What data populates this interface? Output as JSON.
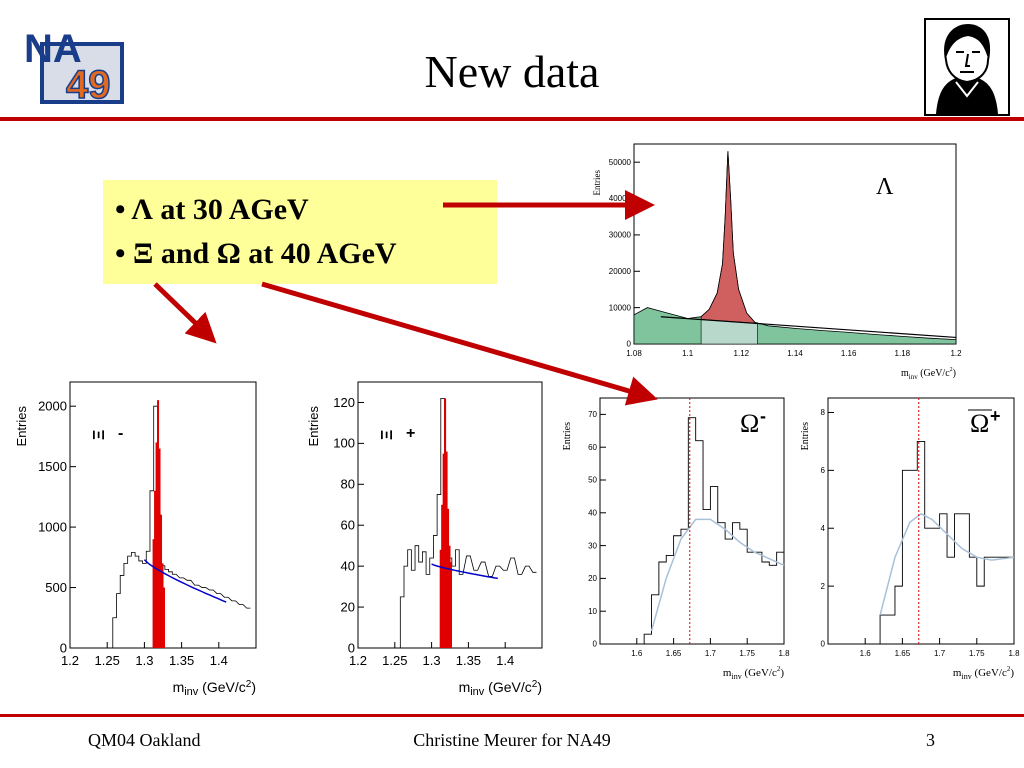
{
  "header": {
    "title": "New data",
    "logo": {
      "line1": "NA",
      "line2": "49",
      "icon": "na49-logo-icon"
    },
    "portrait_icon": "goethe-portrait-icon"
  },
  "bullets": [
    {
      "symbol": "Λ",
      "text": "at 30 AGeV"
    },
    {
      "symbol": "Ξ",
      "mid": "and",
      "symbol2": "Ω",
      "text": "at 40 AGeV"
    }
  ],
  "footer": {
    "left": "QM04 Oakland",
    "center": "Christine Meurer for NA49",
    "page": "3"
  },
  "colors": {
    "rule": "#c00000",
    "box": "#ffff99",
    "signal": "#e00000",
    "lambda_signal": "#d06060",
    "lambda_bg": "#7fc49c",
    "fit_blue": "#0000cc",
    "fit_lightblue": "#a8c0d8"
  },
  "chart_data": [
    {
      "id": "lambda",
      "type": "area",
      "label": "Λ",
      "ylabel": "Entries",
      "xlabel": {
        "main": "m",
        "sub": "inv",
        "unit": " (GeV/c",
        "sup": "2",
        "close": ")"
      },
      "xlim": [
        1.08,
        1.2
      ],
      "ylim": [
        0,
        55000
      ],
      "xticks": [
        "1.08",
        "1.1",
        "1.12",
        "1.14",
        "1.16",
        "1.18",
        "1.2"
      ],
      "yticks": [
        "0",
        "10000",
        "20000",
        "30000",
        "40000",
        "50000"
      ],
      "x": [
        1.08,
        1.085,
        1.09,
        1.095,
        1.1,
        1.105,
        1.108,
        1.111,
        1.113,
        1.114,
        1.115,
        1.116,
        1.117,
        1.119,
        1.122,
        1.125,
        1.13,
        1.14,
        1.15,
        1.16,
        1.17,
        1.18,
        1.19,
        1.2
      ],
      "y": [
        8000,
        10000,
        9000,
        8000,
        7000,
        7500,
        9500,
        14000,
        22000,
        35000,
        53000,
        40000,
        25000,
        15000,
        8500,
        6000,
        5000,
        4300,
        3700,
        3200,
        2600,
        2100,
        1600,
        1200
      ],
      "background_fit": {
        "x": [
          1.09,
          1.2
        ],
        "y": [
          7500,
          1800
        ]
      }
    },
    {
      "id": "xi-minus",
      "type": "line",
      "label": "Ξ",
      "label_sup": "-",
      "ylabel": "Entries",
      "xlabel": {
        "main": "m",
        "sub": "inv",
        "unit": " (GeV/c",
        "sup": "2",
        "close": ")"
      },
      "xlim": [
        1.2,
        1.45
      ],
      "ylim": [
        0,
        2200
      ],
      "xticks": [
        "1.2",
        "1.25",
        "1.3",
        "1.35",
        "1.4"
      ],
      "yticks": [
        "0",
        "500",
        "1000",
        "1500",
        "2000"
      ],
      "x": [
        1.255,
        1.26,
        1.265,
        1.27,
        1.275,
        1.28,
        1.285,
        1.29,
        1.295,
        1.3,
        1.305,
        1.31,
        1.315,
        1.32,
        1.325,
        1.33,
        1.335,
        1.34,
        1.35,
        1.36,
        1.37,
        1.38,
        1.39,
        1.4,
        1.41,
        1.42,
        1.43,
        1.44
      ],
      "y": [
        0,
        250,
        450,
        600,
        700,
        760,
        790,
        760,
        720,
        700,
        800,
        1300,
        2000,
        1100,
        680,
        650,
        630,
        610,
        580,
        560,
        520,
        500,
        480,
        450,
        420,
        390,
        360,
        330
      ],
      "signal": {
        "x": [
          1.312,
          1.314,
          1.316,
          1.318,
          1.32,
          1.322,
          1.324,
          1.326
        ],
        "y": [
          900,
          1300,
          1700,
          2050,
          1650,
          1100,
          700,
          500
        ]
      },
      "fit": {
        "x": [
          1.3,
          1.41
        ],
        "y": [
          730,
          380
        ]
      }
    },
    {
      "id": "xi-plus",
      "type": "line",
      "label": "Ξ",
      "label_sup": "+",
      "ylabel": "Entries",
      "xlabel": {
        "main": "m",
        "sub": "inv",
        "unit": " (GeV/c",
        "sup": "2",
        "close": ")"
      },
      "xlim": [
        1.2,
        1.45
      ],
      "ylim": [
        0,
        130
      ],
      "xticks": [
        "1.2",
        "1.25",
        "1.3",
        "1.35",
        "1.4"
      ],
      "yticks": [
        "0",
        "20",
        "40",
        "60",
        "80",
        "100",
        "120"
      ],
      "x": [
        1.255,
        1.26,
        1.265,
        1.27,
        1.275,
        1.28,
        1.285,
        1.29,
        1.295,
        1.3,
        1.305,
        1.31,
        1.315,
        1.32,
        1.325,
        1.33,
        1.335,
        1.34,
        1.35,
        1.36,
        1.37,
        1.38,
        1.39,
        1.4,
        1.41,
        1.42,
        1.43,
        1.44
      ],
      "y": [
        0,
        25,
        40,
        48,
        38,
        50,
        42,
        47,
        36,
        44,
        55,
        75,
        122,
        60,
        44,
        40,
        48,
        36,
        45,
        38,
        42,
        35,
        40,
        38,
        44,
        36,
        40,
        37
      ],
      "signal": {
        "x": [
          1.312,
          1.314,
          1.316,
          1.318,
          1.32,
          1.322,
          1.324,
          1.326
        ],
        "y": [
          48,
          70,
          95,
          122,
          96,
          68,
          50,
          42
        ]
      },
      "fit": {
        "x": [
          1.3,
          1.39
        ],
        "y": [
          41,
          34
        ]
      }
    },
    {
      "id": "omega-minus",
      "type": "line",
      "label": "Ω",
      "label_sup": "-",
      "ylabel": "Entries",
      "xlabel": {
        "main": "m",
        "sub": "inv",
        "unit": " (GeV/c",
        "sup": "2",
        "close": ")"
      },
      "xlim": [
        1.55,
        1.8
      ],
      "ylim": [
        0,
        75
      ],
      "xticks": [
        "1.6",
        "1.65",
        "1.7",
        "1.75",
        "1.8"
      ],
      "yticks": [
        "0",
        "10",
        "20",
        "30",
        "40",
        "50",
        "60",
        "70"
      ],
      "x": [
        1.615,
        1.625,
        1.635,
        1.645,
        1.655,
        1.665,
        1.675,
        1.685,
        1.695,
        1.705,
        1.715,
        1.725,
        1.735,
        1.745,
        1.755,
        1.765,
        1.775,
        1.785,
        1.795
      ],
      "y": [
        3,
        15,
        25,
        27,
        33,
        35,
        69,
        62,
        41,
        48,
        37,
        32,
        37,
        35,
        28,
        28,
        25,
        24,
        28
      ],
      "fit": {
        "x": [
          1.62,
          1.64,
          1.66,
          1.68,
          1.7,
          1.72,
          1.74,
          1.76,
          1.78,
          1.8
        ],
        "y": [
          4,
          20,
          32,
          38,
          38,
          35,
          31,
          28,
          26,
          24
        ]
      },
      "mass_line": 1.672
    },
    {
      "id": "omega-plus",
      "type": "line",
      "label": "Ω",
      "label_sup": "+",
      "label_bar": true,
      "ylabel": "Entries",
      "xlabel": {
        "main": "m",
        "sub": "inv",
        "unit": " (GeV/c",
        "sup": "2",
        "close": ")"
      },
      "xlim": [
        1.55,
        1.8
      ],
      "ylim": [
        0,
        8.5
      ],
      "xticks": [
        "1.6",
        "1.65",
        "1.7",
        "1.75",
        "1.8"
      ],
      "yticks": [
        "0",
        "2",
        "4",
        "6",
        "8"
      ],
      "x": [
        1.615,
        1.625,
        1.635,
        1.645,
        1.655,
        1.665,
        1.675,
        1.685,
        1.695,
        1.705,
        1.715,
        1.725,
        1.735,
        1.745,
        1.755,
        1.765,
        1.775,
        1.785,
        1.795
      ],
      "y": [
        0,
        1,
        1,
        2,
        6,
        6,
        7,
        4,
        4,
        4.5,
        3,
        4.5,
        4.5,
        3,
        2,
        3,
        3,
        3,
        3
      ],
      "fit": {
        "x": [
          1.62,
          1.64,
          1.66,
          1.675,
          1.69,
          1.71,
          1.73,
          1.75,
          1.77,
          1.8
        ],
        "y": [
          1,
          3,
          4.2,
          4.5,
          4.3,
          3.8,
          3.3,
          3.0,
          2.9,
          3.0
        ]
      },
      "mass_line": 1.672
    }
  ]
}
